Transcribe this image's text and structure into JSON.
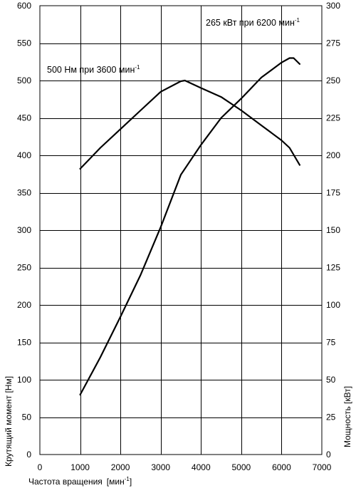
{
  "chart_data": {
    "type": "line",
    "x_axis": {
      "label_main": "Частота вращения",
      "label_unit_open": "[мин",
      "label_unit_sup": "-1",
      "label_unit_close": "]",
      "range": [
        0,
        7000
      ],
      "ticks": [
        0,
        1000,
        2000,
        3000,
        4000,
        5000,
        6000,
        7000
      ]
    },
    "y_left": {
      "label": "Крутящий момент  [Нм]",
      "range": [
        0,
        600
      ],
      "ticks": [
        0,
        50,
        100,
        150,
        200,
        250,
        300,
        350,
        400,
        450,
        500,
        550,
        600
      ]
    },
    "y_right": {
      "label": "Мощность  [кВт]",
      "range": [
        0,
        300
      ],
      "ticks": [
        0,
        25,
        50,
        75,
        100,
        125,
        150,
        175,
        200,
        225,
        250,
        275,
        300
      ]
    },
    "grid": "vertical and horizontal",
    "annotations": {
      "torque_peak": {
        "text": "500 Нм при 3600 мин",
        "sup": "-1"
      },
      "power_peak": {
        "text": "265 кВт при 6200 мин",
        "sup": "-1"
      }
    },
    "series": [
      {
        "axis": "left",
        "x": [
          1000,
          1500,
          2000,
          2500,
          3000,
          3500,
          3600,
          4000,
          4500,
          5000,
          5500,
          6000,
          6200,
          6450
        ],
        "values": [
          382,
          410,
          435,
          460,
          485,
          499,
          500,
          490,
          478,
          460,
          440,
          420,
          410,
          387
        ]
      },
      {
        "axis": "right",
        "x": [
          1000,
          1500,
          2000,
          2500,
          3000,
          3500,
          4000,
          4500,
          5000,
          5500,
          6000,
          6200,
          6300,
          6450
        ],
        "values": [
          40,
          65,
          92,
          120,
          152,
          187,
          207,
          225,
          238,
          252,
          262,
          265,
          265,
          261
        ]
      }
    ]
  }
}
